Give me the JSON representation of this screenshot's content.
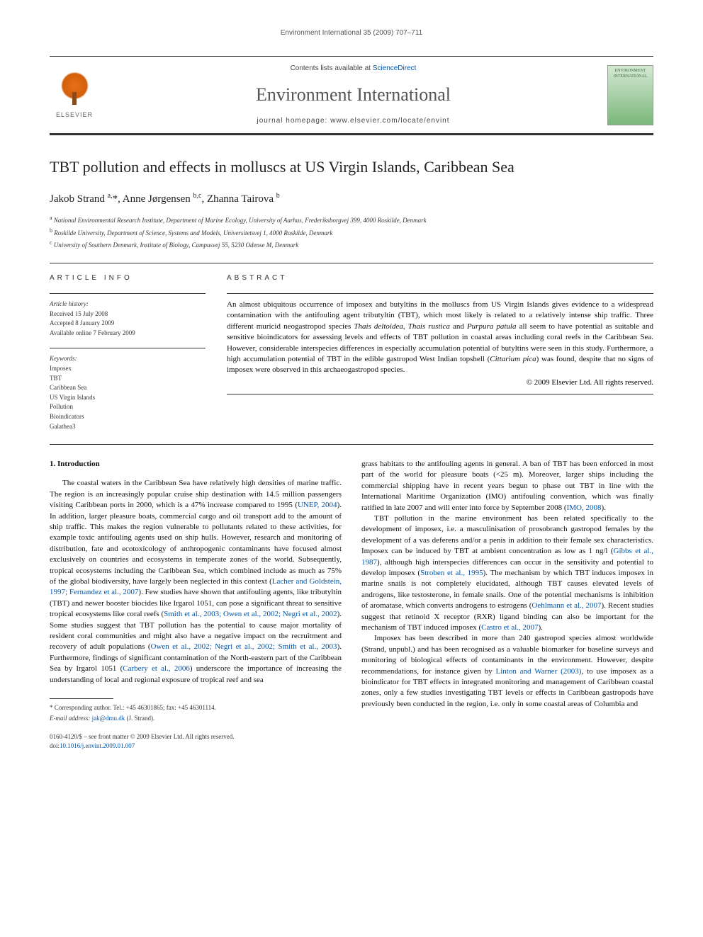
{
  "page_header": "Environment International 35 (2009) 707–711",
  "banner": {
    "contents_prefix": "Contents lists available at ",
    "contents_link": "ScienceDirect",
    "journal_name": "Environment International",
    "homepage_label": "journal homepage: ",
    "homepage_url": "www.elsevier.com/locate/envint",
    "elsevier_label": "ELSEVIER",
    "cover_text": "ENVIRONMENT INTERNATIONAL"
  },
  "title": "TBT pollution and effects in molluscs at US Virgin Islands, Caribbean Sea",
  "authors_html": "Jakob Strand <sup>a,</sup>*, Anne Jørgensen <sup>b,c</sup>, Zhanna Tairova <sup>b</sup>",
  "affiliations": [
    {
      "sup": "a",
      "text": "National Environmental Research Institute, Department of Marine Ecology, University of Aarhus, Frederiksborgvej 399, 4000 Roskilde, Denmark"
    },
    {
      "sup": "b",
      "text": "Roskilde University, Department of Science, Systems and Models, Universitetsvej 1, 4000 Roskilde, Denmark"
    },
    {
      "sup": "c",
      "text": "University of Southern Denmark, Institute of Biology, Campusvej 55, 5230 Odense M, Denmark"
    }
  ],
  "info": {
    "heading": "ARTICLE INFO",
    "history_label": "Article history:",
    "received": "Received 15 July 2008",
    "accepted": "Accepted 8 January 2009",
    "online": "Available online 7 February 2009",
    "keywords_label": "Keywords:",
    "keywords": [
      "Imposex",
      "TBT",
      "Caribbean Sea",
      "US Virgin Islands",
      "Pollution",
      "Bioindicators",
      "Galathea3"
    ]
  },
  "abstract": {
    "heading": "ABSTRACT",
    "text": "An almost ubiquitous occurrence of imposex and butyltins in the molluscs from US Virgin Islands gives evidence to a widespread contamination with the antifouling agent tributyltin (TBT), which most likely is related to a relatively intense ship traffic. Three different muricid neogastropod species Thais deltoidea, Thais rustica and Purpura patula all seem to have potential as suitable and sensitive bioindicators for assessing levels and effects of TBT pollution in coastal areas including coral reefs in the Caribbean Sea. However, considerable interspecies differences in especially accumulation potential of butyltins were seen in this study. Furthermore, a high accumulation potential of TBT in the edible gastropod West Indian topshell (Cittarium pica) was found, despite that no signs of imposex were observed in this archaeogastropod species.",
    "copyright": "© 2009 Elsevier Ltd. All rights reserved."
  },
  "section1": {
    "heading": "1. Introduction",
    "left_para": "The coastal waters in the Caribbean Sea have relatively high densities of marine traffic. The region is an increasingly popular cruise ship destination with 14.5 million passengers visiting Caribbean ports in 2000, which is a 47% increase compared to 1995 (UNEP, 2004). In addition, larger pleasure boats, commercial cargo and oil transport add to the amount of ship traffic. This makes the region vulnerable to pollutants related to these activities, for example toxic antifouling agents used on ship hulls. However, research and monitoring of distribution, fate and ecotoxicology of anthropogenic contaminants have focused almost exclusively on countries and ecosystems in temperate zones of the world. Subsequently, tropical ecosystems including the Caribbean Sea, which combined include as much as 75% of the global biodiversity, have largely been neglected in this context (Lacher and Goldstein, 1997; Fernandez et al., 2007). Few studies have shown that antifouling agents, like tributyltin (TBT) and newer booster biocides like Irgarol 1051, can pose a significant threat to sensitive tropical ecosystems like coral reefs (Smith et al., 2003; Owen et al., 2002; Negri et al., 2002). Some studies suggest that TBT pollution has the potential to cause major mortality of resident coral communities and might also have a negative impact on the recruitment and recovery of adult populations (Owen et al., 2002; Negri et al., 2002; Smith et al., 2003). Furthermore, findings of significant contamination of the North-eastern part of the Caribbean Sea by Irgarol 1051 (Carbery et al., 2006) underscore the importance of increasing the understanding of local and regional exposure of tropical reef and sea",
    "right_para1": "grass habitats to the antifouling agents in general. A ban of TBT has been enforced in most part of the world for pleasure boats (<25 m). Moreover, larger ships including the commercial shipping have in recent years begun to phase out TBT in line with the International Maritime Organization (IMO) antifouling convention, which was finally ratified in late 2007 and will enter into force by September 2008 (IMO, 2008).",
    "right_para2": "TBT pollution in the marine environment has been related specifically to the development of imposex, i.e. a masculinisation of prosobranch gastropod females by the development of a vas deferens and/or a penis in addition to their female sex characteristics. Imposex can be induced by TBT at ambient concentration as low as 1 ng/l (Gibbs et al., 1987), although high interspecies differences can occur in the sensitivity and potential to develop imposex (Stroben et al., 1995). The mechanism by which TBT induces imposex in marine snails is not completely elucidated, although TBT causes elevated levels of androgens, like testosterone, in female snails. One of the potential mechanisms is inhibition of aromatase, which converts androgens to estrogens (Oehlmann et al., 2007). Recent studies suggest that retinoid X receptor (RXR) ligand binding can also be important for the mechanism of TBT induced imposex (Castro et al., 2007).",
    "right_para3": "Imposex has been described in more than 240 gastropod species almost worldwide (Strand, unpubl.) and has been recognised as a valuable biomarker for baseline surveys and monitoring of biological effects of contaminants in the environment. However, despite recommendations, for instance given by Linton and Warner (2003), to use imposex as a bioindicator for TBT effects in integrated monitoring and management of Caribbean coastal zones, only a few studies investigating TBT levels or effects in Caribbean gastropods have previously been conducted in the region, i.e. only in some coastal areas of Columbia and"
  },
  "footnote": {
    "corr": "* Corresponding author. Tel.: +45 46301865; fax: +45 46301114.",
    "email_label": "E-mail address: ",
    "email": "jak@dmu.dk",
    "email_suffix": " (J. Strand)."
  },
  "bottom": {
    "issn": "0160-4120/$ – see front matter © 2009 Elsevier Ltd. All rights reserved.",
    "doi_label": "doi:",
    "doi": "10.1016/j.envint.2009.01.007"
  },
  "colors": {
    "link": "#0055aa",
    "text": "#111111",
    "muted": "#555555",
    "rule": "#333333"
  }
}
